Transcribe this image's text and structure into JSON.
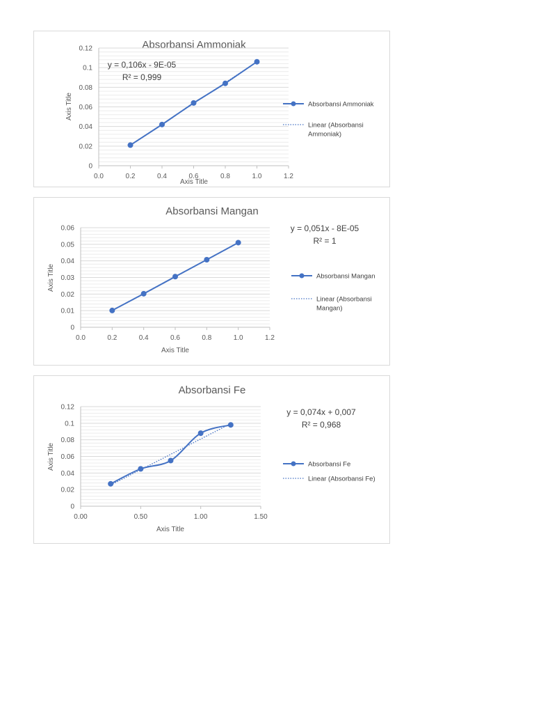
{
  "colors": {
    "series": "#4472c4",
    "trend": "#4472c4",
    "grid": "#d9d9d9",
    "text": "#595959"
  },
  "chart_data": [
    {
      "type": "line",
      "title": "Absorbansi Ammoniak",
      "xlabel": "Axis Title",
      "ylabel": "Axis Title",
      "x": [
        0.2,
        0.4,
        0.6,
        0.8,
        1.0
      ],
      "series": [
        {
          "name": "Absorbansi Ammoniak",
          "values": [
            0.021,
            0.042,
            0.064,
            0.084,
            0.106
          ]
        }
      ],
      "trendline": {
        "name": "Linear (Absorbansi Ammoniak)",
        "slope": 0.106,
        "intercept": -9e-05
      },
      "equation": "y = 0,106x - 9E-05",
      "r2": "R² = 0,999",
      "xlim": [
        0,
        1.2
      ],
      "ylim": [
        0,
        0.12
      ],
      "xticks": [
        "0.0",
        "0.2",
        "0.4",
        "0.6",
        "0.8",
        "1.0",
        "1.2"
      ],
      "yticks": [
        "0",
        "0.02",
        "0.04",
        "0.06",
        "0.08",
        "0.1",
        "0.12"
      ],
      "grid": true,
      "legend": "right",
      "smooth": false
    },
    {
      "type": "line",
      "title": "Absorbansi Mangan",
      "xlabel": "Axis Title",
      "ylabel": "Axis Title",
      "x": [
        0.2,
        0.4,
        0.6,
        0.8,
        1.0
      ],
      "series": [
        {
          "name": "Absorbansi Mangan",
          "values": [
            0.0101,
            0.0202,
            0.0305,
            0.0407,
            0.051
          ]
        }
      ],
      "trendline": {
        "name": "Linear (Absorbansi Mangan)",
        "slope": 0.051,
        "intercept": -8e-05
      },
      "equation": "y = 0,051x - 8E-05",
      "r2": "R² = 1",
      "xlim": [
        0,
        1.2
      ],
      "ylim": [
        0,
        0.06
      ],
      "xticks": [
        "0.0",
        "0.2",
        "0.4",
        "0.6",
        "0.8",
        "1.0",
        "1.2"
      ],
      "yticks": [
        "0",
        "0.01",
        "0.02",
        "0.03",
        "0.04",
        "0.05",
        "0.06"
      ],
      "grid": true,
      "legend": "right",
      "smooth": false
    },
    {
      "type": "line",
      "title": "Absorbansi Fe",
      "xlabel": "Axis Title",
      "ylabel": "Axis Title",
      "x": [
        0.25,
        0.5,
        0.75,
        1.0,
        1.25
      ],
      "series": [
        {
          "name": "Absorbansi Fe",
          "values": [
            0.027,
            0.045,
            0.055,
            0.088,
            0.098
          ]
        }
      ],
      "trendline": {
        "name": "Linear (Absorbansi Fe)",
        "slope": 0.074,
        "intercept": 0.007
      },
      "equation": "y = 0,074x + 0,007",
      "r2": "R² = 0,968",
      "xlim": [
        0,
        1.5
      ],
      "ylim": [
        0,
        0.12
      ],
      "xticks": [
        "0.00",
        "0.50",
        "1.00",
        "1.50"
      ],
      "yticks": [
        "0",
        "0.02",
        "0.04",
        "0.06",
        "0.08",
        "0.1",
        "0.12"
      ],
      "grid": true,
      "legend": "right",
      "smooth": true
    }
  ]
}
